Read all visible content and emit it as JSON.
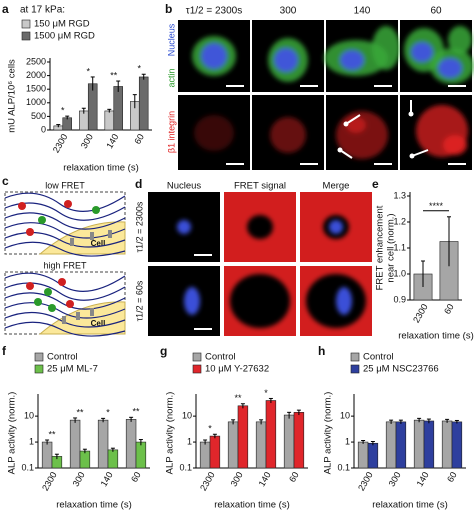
{
  "panel_letters": [
    "a",
    "b",
    "c",
    "d",
    "e",
    "f",
    "g",
    "h"
  ],
  "chart_data": [
    {
      "type": "bar",
      "title": "at 17 kPa:",
      "categories": [
        "2300",
        "300",
        "140",
        "60"
      ],
      "series": [
        {
          "name": "150 μM RGD",
          "color": "#c9c9c9",
          "values": [
            150,
            700,
            700,
            1050
          ],
          "errors": [
            50,
            100,
            60,
            250
          ]
        },
        {
          "name": "1500 μM RGD",
          "color": "#6b6b6b",
          "values": [
            450,
            1700,
            1600,
            1950
          ],
          "errors": [
            60,
            250,
            200,
            100
          ]
        }
      ],
      "ylabel": [
        "mU ALP/10⁶ cells"
      ],
      "xlabel": "relaxation time (s)",
      "ylim": [
        0,
        2500
      ],
      "yticks": [
        0,
        500,
        1000,
        1500,
        2000,
        2500
      ],
      "annotations": [
        "*",
        "*",
        "**",
        "*"
      ]
    },
    {
      "type": "bar",
      "categories": [
        "2300",
        "60"
      ],
      "series": [
        {
          "color": "#a6a6a6",
          "values": [
            1.0,
            1.125
          ],
          "errors": [
            0.05,
            0.095
          ]
        }
      ],
      "ylabel": [
        "FRET enhancement",
        "near cell (norm.)"
      ],
      "xlabel": "relaxation time (s)",
      "ylim": [
        0.9,
        1.3
      ],
      "yticks": [
        0.9,
        {
          "value": 1,
          "label": "1.0"
        },
        1.1,
        1.2,
        1.3
      ],
      "annotations": [
        "****"
      ]
    },
    {
      "type": "bar",
      "categories": [
        "2300",
        "300",
        "140",
        "60"
      ],
      "log": true,
      "series": [
        {
          "name": "Control",
          "color": "#a6a6a6",
          "values": [
            1.0,
            7,
            7,
            7.5
          ],
          "errors": [
            0.2,
            1.5,
            1.2,
            1.5
          ]
        },
        {
          "name": "25 μM ML-7",
          "color": "#6cc04a",
          "values": [
            0.28,
            0.45,
            0.5,
            1.0
          ],
          "errors": [
            0.06,
            0.08,
            0.08,
            0.25
          ]
        }
      ],
      "ylabel": [
        "ALP activity (norm.)"
      ],
      "xlabel": "relaxation time (s)",
      "ylim": [
        0.1,
        50
      ],
      "yticks": [
        0.1,
        1,
        10
      ],
      "annotations": [
        "**",
        "**",
        "*",
        "**"
      ]
    },
    {
      "type": "bar",
      "categories": [
        "2300",
        "300",
        "140",
        "60"
      ],
      "log": true,
      "series": [
        {
          "name": "Control",
          "color": "#a6a6a6",
          "values": [
            1.0,
            6,
            6,
            11
          ],
          "errors": [
            0.2,
            1.2,
            1.2,
            3
          ]
        },
        {
          "name": "10 μM Y-27632",
          "color": "#e0262b",
          "values": [
            1.7,
            25,
            40,
            14
          ],
          "errors": [
            0.3,
            5,
            8,
            3
          ]
        }
      ],
      "ylabel": [
        "ALP activity (norm.)"
      ],
      "xlabel": "relaxation time (s)",
      "ylim": [
        0.1,
        50
      ],
      "yticks": [
        0.1,
        1,
        10
      ],
      "annotations": [
        "*",
        "**",
        "*"
      ]
    },
    {
      "type": "bar",
      "categories": [
        "2300",
        "300",
        "140",
        "60"
      ],
      "log": true,
      "series": [
        {
          "name": "Control",
          "color": "#a6a6a6",
          "values": [
            1.0,
            6,
            7,
            6.5
          ],
          "errors": [
            0.15,
            1,
            1.2,
            1
          ]
        },
        {
          "name": "25 μM NSC23766",
          "color": "#2e3f9e",
          "values": [
            0.9,
            6,
            6.5,
            6
          ],
          "errors": [
            0.15,
            1,
            1.2,
            0.8
          ]
        }
      ],
      "ylabel": [
        "ALP activity (norm.)"
      ],
      "xlabel": "relaxation time (s)",
      "ylim": [
        0.1,
        50
      ],
      "yticks": [
        0.1,
        1,
        10
      ]
    }
  ],
  "image_panels": {
    "b": {
      "columns": [
        "τ1/2 = 2300s",
        "300",
        "140",
        "60"
      ],
      "rows": [
        "Nucleus",
        "actin",
        "β1 integrin"
      ]
    },
    "c": {
      "titles": [
        "low FRET",
        "high FRET"
      ],
      "cell": [
        "Cell",
        "Cell"
      ]
    },
    "d": {
      "columns": [
        "Nucleus",
        "FRET signal",
        "Merge"
      ],
      "rows": [
        "τ1/2 = 2300s",
        "τ1/2 = 60s"
      ]
    }
  }
}
